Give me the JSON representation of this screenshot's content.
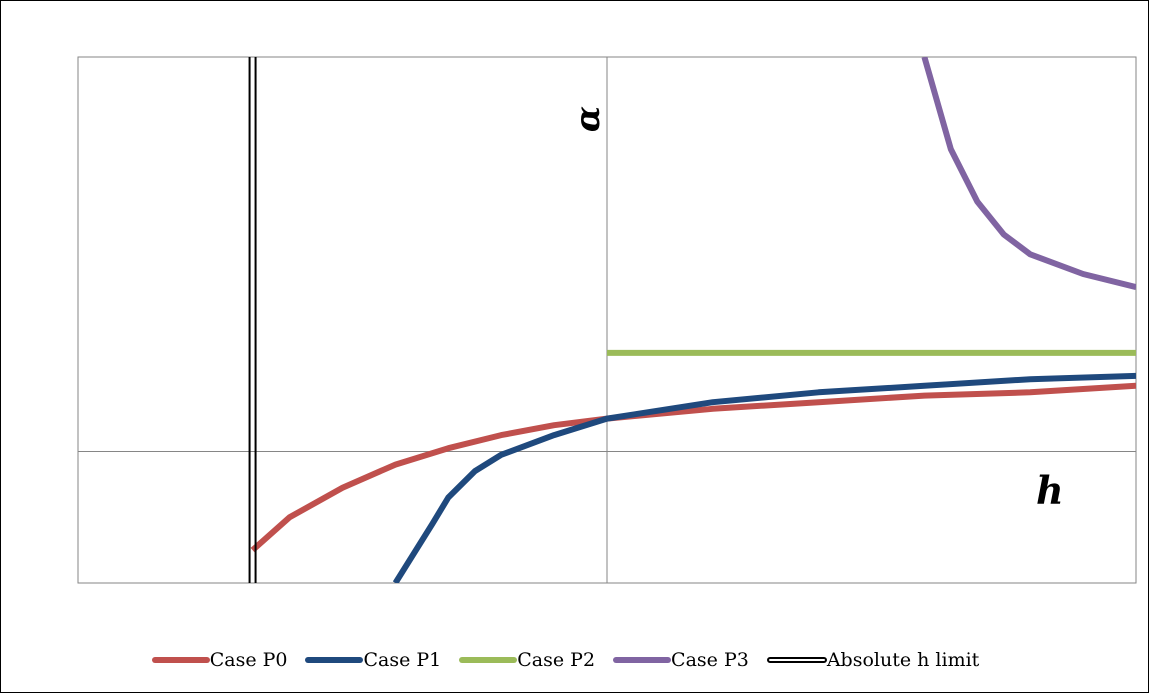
{
  "chart_data": {
    "type": "line",
    "title": "",
    "xlabel": "h",
    "ylabel": "α",
    "xlim": [
      -1,
      1
    ],
    "ylim": [
      -0.4,
      1.2
    ],
    "grid": true,
    "legend_position": "bottom",
    "series": [
      {
        "name": "Case P0",
        "color": "#c0504d",
        "x": [
          -0.67,
          -0.6,
          -0.5,
          -0.4,
          -0.3,
          -0.2,
          -0.1,
          0.0,
          0.2,
          0.4,
          0.6,
          0.8,
          1.0
        ],
        "y": [
          -0.3,
          -0.2,
          -0.11,
          -0.04,
          0.01,
          0.05,
          0.08,
          0.1,
          0.13,
          0.15,
          0.17,
          0.18,
          0.2
        ]
      },
      {
        "name": "Case P1",
        "color": "#1f497d",
        "x": [
          -0.4,
          -0.33,
          -0.3,
          -0.25,
          -0.2,
          -0.1,
          0.0,
          0.2,
          0.4,
          0.6,
          0.8,
          1.0
        ],
        "y": [
          -0.4,
          -0.22,
          -0.14,
          -0.06,
          -0.01,
          0.05,
          0.1,
          0.15,
          0.18,
          0.2,
          0.22,
          0.23
        ]
      },
      {
        "name": "Case P2",
        "color": "#9bbb59",
        "x": [
          0.0,
          1.0
        ],
        "y": [
          0.3,
          0.3
        ]
      },
      {
        "name": "Case P3",
        "color": "#8064a2",
        "x": [
          0.6,
          0.65,
          0.7,
          0.75,
          0.8,
          0.9,
          1.0
        ],
        "y": [
          1.2,
          0.92,
          0.76,
          0.66,
          0.6,
          0.54,
          0.5
        ]
      },
      {
        "name": "Absolute h limit",
        "color": "#000000",
        "style": "double",
        "x": [
          -0.67,
          -0.67
        ],
        "y": [
          -0.4,
          1.2
        ]
      }
    ]
  }
}
